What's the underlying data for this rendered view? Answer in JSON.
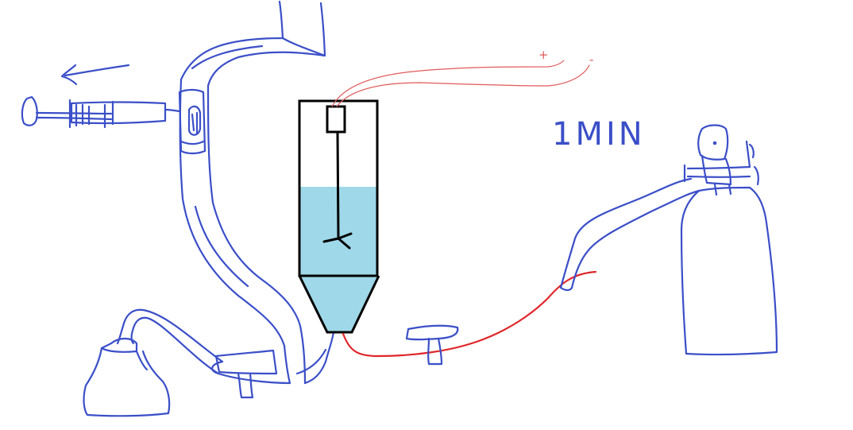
{
  "labels": {
    "time": "1MIN",
    "plus": "+",
    "minus": "-"
  },
  "colors": {
    "sketch_blue": "#3b4fc8",
    "wire_red": "#e0262a",
    "lead_red": "#e05a5a",
    "liquid": "#9fd8e8",
    "outline": "#000000",
    "background": "#ffffff"
  }
}
